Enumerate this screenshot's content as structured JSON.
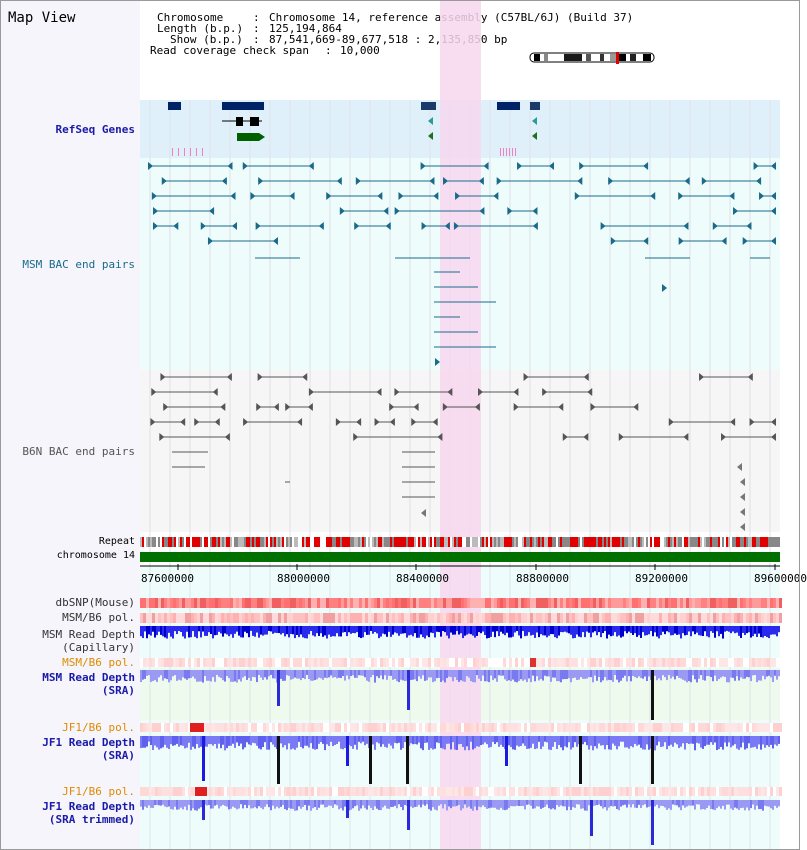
{
  "title": "Map View",
  "info": {
    "chromosome_key": "Chromosome",
    "chromosome_val": "Chromosome 14, reference assembly (C57BL/6J) (Build 37)",
    "length_key": "Length (b.p.)",
    "length_val": "125,194,864",
    "show_key": "Show (b.p.)",
    "show_val": "87,541,669-89,677,518 : 2,135,850 bp",
    "coverage_key": "Read coverage check span",
    "coverage_val": "10,000"
  },
  "tracks": {
    "refseq": "RefSeq Genes",
    "msm_bac": "MSM BAC end pairs",
    "b6n_bac": "B6N BAC end pairs",
    "repeat": "Repeat",
    "chromosome": "chromosome 14",
    "dbsnp": "dbSNP(Mouse)",
    "msm_b6_pol_1": "MSM/B6 pol.",
    "msm_read_depth_cap_1": "MSM Read Depth",
    "msm_read_depth_cap_2": "(Capillary)",
    "msm_b6_pol_2": "MSM/B6 pol.",
    "msm_read_depth_sra_1": "MSM Read Depth",
    "msm_read_depth_sra_2": "(SRA)",
    "jf1_b6_pol_1": "JF1/B6 pol.",
    "jf1_read_depth_sra_1": "JF1 Read Depth",
    "jf1_read_depth_sra_2": "(SRA)",
    "jf1_b6_pol_2": "JF1/B6 pol.",
    "jf1_read_depth_trim_1": "JF1 Read Depth",
    "jf1_read_depth_trim_2": "(SRA trimmed)"
  },
  "axis": {
    "ticks": [
      "87600000",
      "88000000",
      "88400000",
      "88800000",
      "89200000",
      "89600000"
    ]
  },
  "colors": {
    "refseq_label": "#1a1aa8",
    "bac_msm_label": "#1a6a8a",
    "b6n_label": "#555555",
    "pol_label": "#e08a00",
    "read_depth_label": "#1a1aa8",
    "highlight": "#f7d7ef",
    "chromosome": "#007000"
  }
}
